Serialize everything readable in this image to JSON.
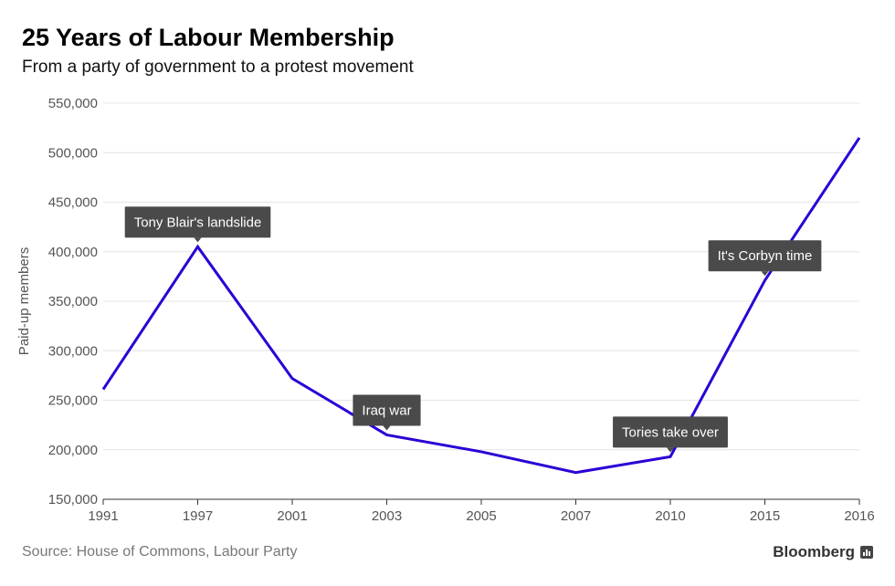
{
  "chart_data": {
    "type": "line",
    "title": "25 Years of Labour Membership",
    "subtitle": "From a party of government to a protest movement",
    "xlabel": "",
    "ylabel": "Paid-up members",
    "categories": [
      "1991",
      "1997",
      "2001",
      "2003",
      "2005",
      "2007",
      "2010",
      "2015",
      "2016"
    ],
    "series": [
      {
        "name": "Paid-up members",
        "values": [
          261000,
          405000,
          272000,
          215000,
          198000,
          177000,
          193000,
          371000,
          515000
        ],
        "color": "#2b00d6"
      }
    ],
    "ylim": [
      150000,
      550000
    ],
    "yticks": [
      150000,
      200000,
      250000,
      300000,
      350000,
      400000,
      450000,
      500000,
      550000
    ],
    "ytick_labels": [
      "150,000",
      "200,000",
      "250,000",
      "300,000",
      "350,000",
      "400,000",
      "450,000",
      "500,000",
      "550,000"
    ],
    "grid": true,
    "annotations": [
      {
        "label": "Tony Blair's landslide",
        "category": "1997"
      },
      {
        "label": "Iraq war",
        "category": "2003"
      },
      {
        "label": "Tories take over",
        "category": "2010"
      },
      {
        "label": "It's Corbyn time",
        "category": "2015"
      }
    ],
    "source": "Source: House of Commons, Labour Party",
    "brand": "Bloomberg"
  }
}
